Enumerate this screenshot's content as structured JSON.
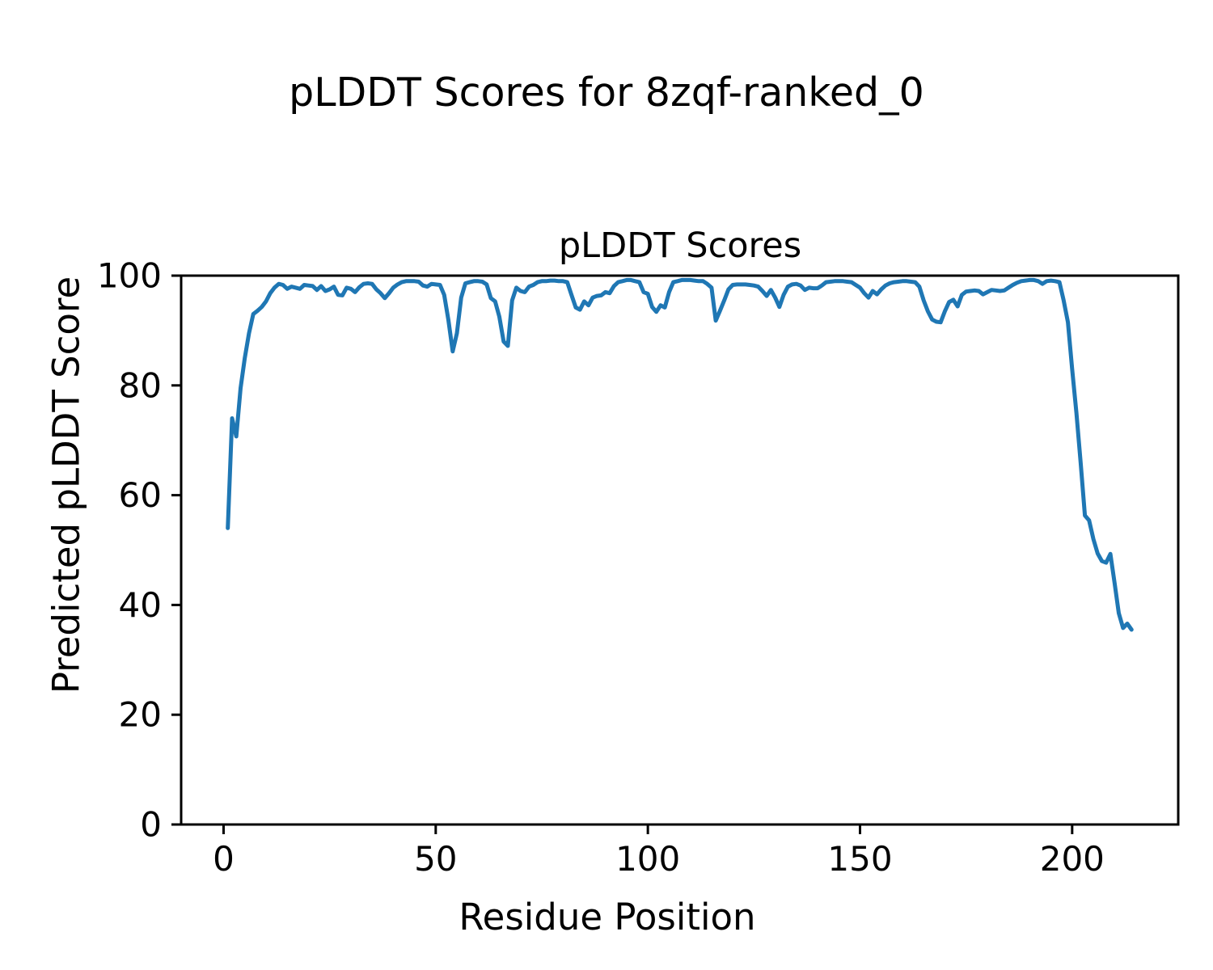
{
  "figure_title": "pLDDT Scores for 8zqf-ranked_0",
  "chart_data": {
    "type": "line",
    "title": "pLDDT Scores",
    "xlabel": "Residue Position",
    "ylabel": "Predicted pLDDT Score",
    "xlim": [
      -10,
      225
    ],
    "ylim": [
      0,
      100
    ],
    "xticks": [
      0,
      50,
      100,
      150,
      200
    ],
    "yticks": [
      0,
      20,
      40,
      60,
      80,
      100
    ],
    "grid": false,
    "legend": "none",
    "line_color": "#1f77b4",
    "axis_color": "#000000",
    "series": [
      {
        "name": "pLDDT",
        "x_start": 1,
        "x_step": 1,
        "y": [
          54.0,
          74.0,
          70.7,
          79.5,
          85.0,
          89.5,
          93.0,
          93.6,
          94.3,
          95.3,
          96.8,
          97.8,
          98.5,
          98.3,
          97.6,
          98.0,
          97.8,
          97.6,
          98.3,
          98.2,
          98.1,
          97.4,
          98.1,
          97.2,
          97.5,
          98.0,
          96.5,
          96.4,
          97.8,
          97.6,
          97.0,
          97.9,
          98.5,
          98.6,
          98.5,
          97.5,
          96.8,
          95.9,
          96.8,
          97.8,
          98.4,
          98.8,
          99.0,
          99.0,
          99.0,
          98.9,
          98.2,
          98.0,
          98.5,
          98.4,
          98.3,
          96.5,
          91.9,
          86.2,
          89.5,
          96.0,
          98.6,
          98.8,
          99.0,
          99.0,
          98.9,
          98.4,
          95.9,
          95.3,
          92.5,
          88.0,
          87.2,
          95.5,
          97.8,
          97.2,
          97.0,
          98.0,
          98.3,
          98.8,
          99.0,
          99.0,
          99.1,
          99.1,
          99.0,
          99.0,
          98.8,
          96.5,
          94.2,
          93.8,
          95.3,
          94.6,
          96.0,
          96.3,
          96.4,
          97.0,
          96.8,
          98.1,
          98.8,
          99.0,
          99.2,
          99.2,
          99.0,
          98.8,
          97.0,
          96.7,
          94.3,
          93.4,
          94.6,
          94.2,
          97.0,
          98.8,
          99.0,
          99.2,
          99.2,
          99.2,
          99.1,
          99.0,
          99.0,
          98.5,
          97.8,
          91.8,
          93.6,
          95.5,
          97.5,
          98.3,
          98.4,
          98.4,
          98.4,
          98.3,
          98.2,
          98.0,
          97.2,
          96.3,
          97.4,
          96.0,
          94.3,
          96.5,
          98.0,
          98.4,
          98.5,
          98.2,
          97.4,
          97.8,
          97.7,
          97.7,
          98.2,
          98.8,
          98.9,
          99.0,
          99.0,
          99.0,
          98.9,
          98.8,
          98.3,
          97.8,
          96.8,
          96.0,
          97.2,
          96.6,
          97.5,
          98.2,
          98.6,
          98.8,
          98.9,
          99.0,
          99.0,
          98.9,
          98.8,
          98.0,
          95.5,
          93.5,
          92.0,
          91.6,
          91.5,
          93.5,
          95.2,
          95.6,
          94.4,
          96.5,
          97.1,
          97.2,
          97.3,
          97.2,
          96.6,
          97.0,
          97.4,
          97.3,
          97.2,
          97.3,
          97.8,
          98.3,
          98.7,
          99.0,
          99.1,
          99.2,
          99.2,
          99.0,
          98.5,
          99.0,
          99.1,
          99.0,
          98.8,
          95.5,
          91.5,
          83.0,
          75.0,
          66.0,
          56.3,
          55.4,
          52.0,
          49.4,
          48.0,
          47.7,
          49.3,
          44.0,
          38.5,
          35.8,
          36.6,
          35.5
        ]
      }
    ]
  }
}
